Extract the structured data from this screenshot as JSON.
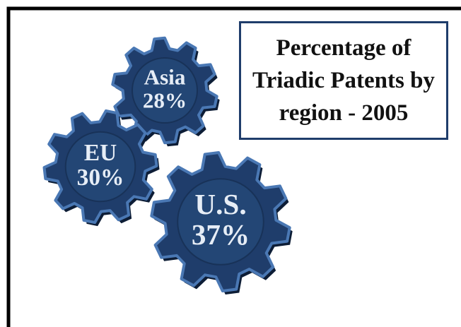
{
  "chart_data": {
    "type": "gears",
    "title": "Percentage of Triadic Patents by region - 2005",
    "categories": [
      "Asia",
      "EU",
      "U.S."
    ],
    "values": [
      28,
      30,
      37
    ],
    "value_labels": [
      "28%",
      "30%",
      "37%"
    ],
    "color": "#1f3d6b"
  }
}
